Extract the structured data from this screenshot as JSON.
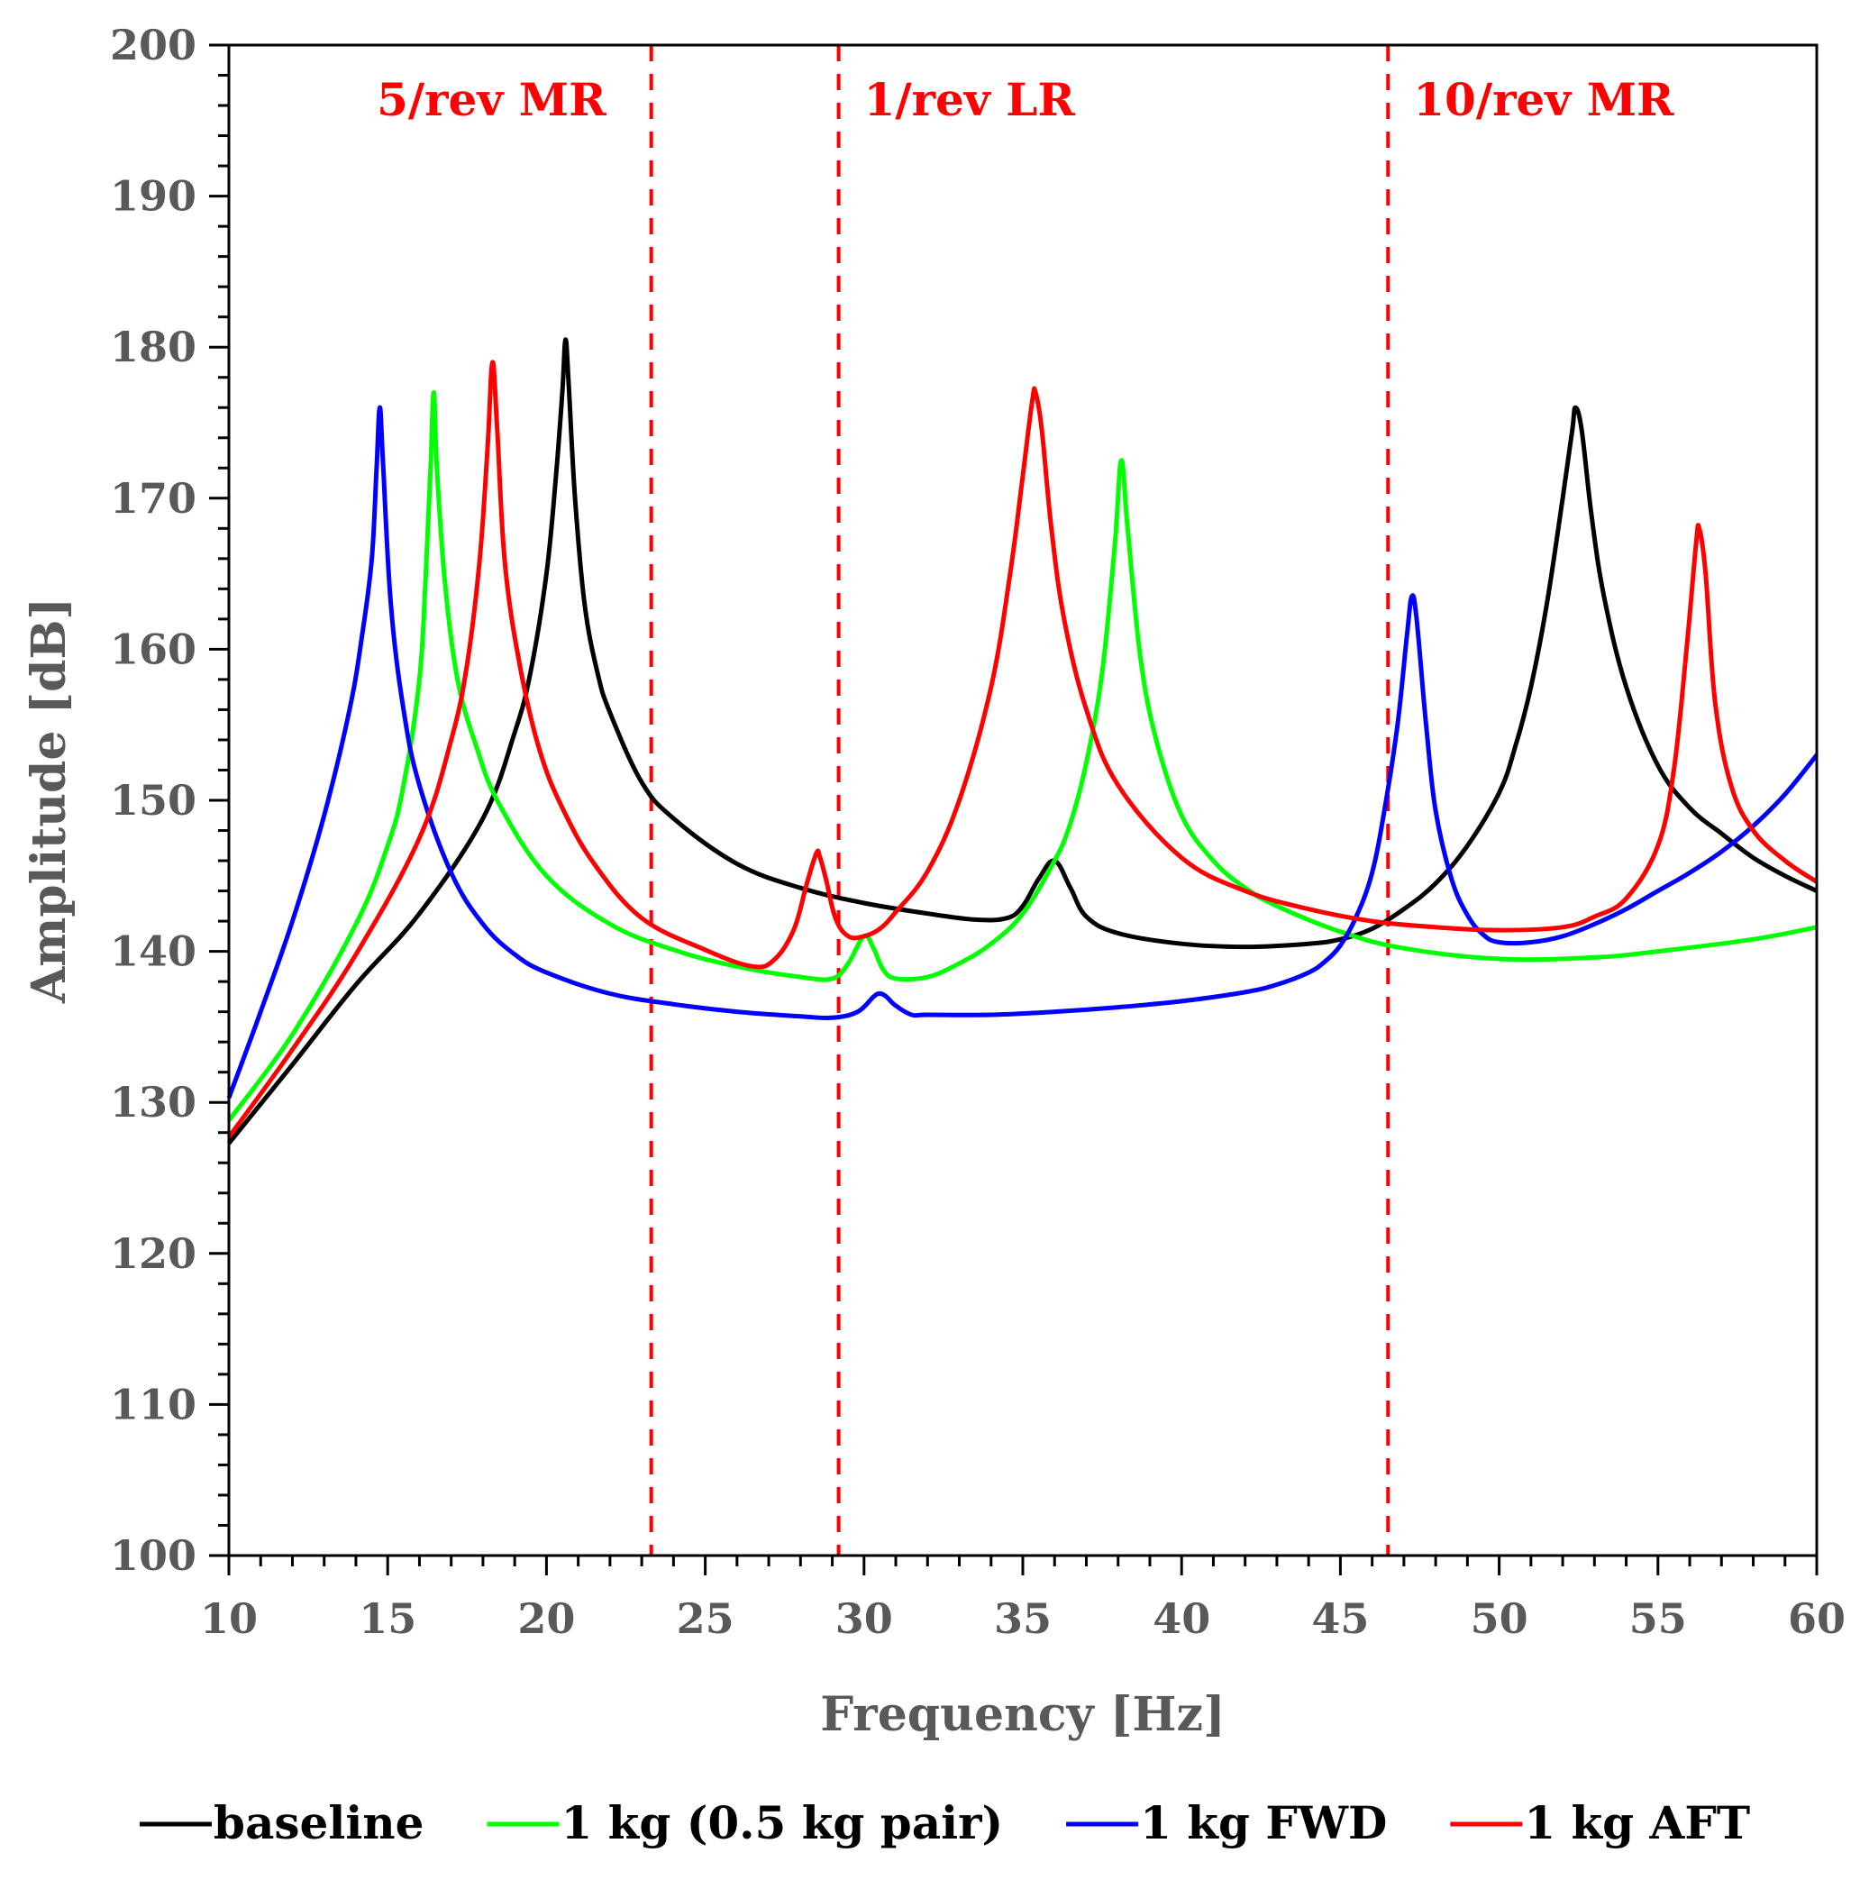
{
  "chart_data": {
    "type": "line",
    "title": "",
    "xlabel": "Frequency [Hz]",
    "ylabel": "Amplitude [dB]",
    "xlim": [
      10,
      60
    ],
    "ylim": [
      100,
      200
    ],
    "xticks": [
      10,
      15,
      20,
      25,
      30,
      35,
      40,
      45,
      50,
      55,
      60
    ],
    "yticks": [
      100,
      110,
      120,
      130,
      140,
      150,
      160,
      170,
      180,
      190,
      200
    ],
    "xtick_labels": [
      "10",
      "15",
      "20",
      "25",
      "30",
      "35",
      "40",
      "45",
      "50",
      "55",
      "60"
    ],
    "ytick_labels": [
      "100",
      "110",
      "120",
      "130",
      "140",
      "150",
      "160",
      "170",
      "180",
      "190",
      "200"
    ],
    "grid": false,
    "legend_position": "bottom",
    "reference_lines": [
      {
        "x": 23.3,
        "label": "5/rev MR",
        "label_side": "left",
        "color": "#ff0000"
      },
      {
        "x": 29.2,
        "label": "1/rev LR",
        "label_side": "right",
        "color": "#ff0000"
      },
      {
        "x": 46.5,
        "label": "10/rev MR",
        "label_side": "right",
        "color": "#ff0000"
      }
    ],
    "series": [
      {
        "name": "baseline",
        "color": "#000000",
        "x": [
          10,
          12,
          14,
          16,
          18,
          19,
          19.5,
          20,
          20.3,
          20.5,
          20.6,
          20.7,
          20.9,
          21.2,
          21.6,
          22,
          23,
          24,
          26,
          28,
          30,
          32,
          33.5,
          34.5,
          35,
          35.5,
          36,
          36.5,
          37,
          38,
          40,
          42,
          44,
          45,
          46,
          47,
          48,
          49,
          50,
          50.5,
          51,
          51.5,
          52,
          52.3,
          52.4,
          52.6,
          52.9,
          53.3,
          54,
          55,
          56,
          57,
          58,
          59,
          60
        ],
        "y": [
          127.3,
          132.5,
          137.8,
          142.5,
          148.8,
          154.5,
          158.5,
          165,
          171.5,
          177,
          180.5,
          177.5,
          170,
          163,
          158.5,
          155.8,
          151.2,
          148.8,
          145.8,
          144.2,
          143.2,
          142.5,
          142.1,
          142.2,
          143,
          144.8,
          146,
          144.2,
          142.3,
          141.2,
          140.5,
          140.3,
          140.5,
          140.8,
          141.5,
          142.8,
          144.5,
          147,
          150.5,
          153.5,
          157.5,
          163,
          170,
          174.5,
          176,
          174.5,
          169,
          163.5,
          157.5,
          152.3,
          149.5,
          147.8,
          146.2,
          145,
          144
        ]
      },
      {
        "name": "1 kg (0.5 kg pair)",
        "color": "#00ff00",
        "x": [
          10,
          12,
          14,
          15,
          15.5,
          16,
          16.2,
          16.35,
          16.45,
          16.55,
          16.8,
          17.2,
          17.8,
          18.5,
          20,
          22,
          24,
          26,
          28,
          29,
          29.5,
          30,
          30.3,
          30.6,
          31,
          32,
          33,
          34,
          35,
          36,
          36.5,
          37,
          37.5,
          37.9,
          38.1,
          38.3,
          38.7,
          39.2,
          40,
          41,
          42,
          43,
          45,
          47,
          50,
          53,
          55,
          58,
          60
        ],
        "y": [
          128.8,
          134.5,
          141.8,
          147,
          151,
          158,
          165,
          172,
          177,
          172,
          164.5,
          158,
          153.5,
          149.8,
          145,
          141.8,
          140.1,
          139,
          138.3,
          138.2,
          139.2,
          141,
          140.2,
          138.8,
          138.2,
          138.3,
          139.2,
          140.5,
          142.5,
          146,
          148.5,
          152.5,
          158.5,
          167,
          172.5,
          168,
          159.5,
          154,
          149,
          146,
          144.2,
          143,
          141.3,
          140.2,
          139.5,
          139.6,
          140,
          140.8,
          141.6
        ]
      },
      {
        "name": "1 kg FWD",
        "color": "#0000ff",
        "x": [
          10,
          11,
          12,
          13,
          13.8,
          14.2,
          14.5,
          14.65,
          14.75,
          14.85,
          15.1,
          15.5,
          16,
          17,
          18,
          19,
          20,
          22,
          24,
          26,
          28,
          29,
          29.8,
          30.3,
          30.5,
          30.7,
          31,
          31.5,
          32,
          34,
          36,
          38,
          40,
          42,
          43,
          44,
          44.5,
          45,
          45.5,
          46,
          46.4,
          46.8,
          47.1,
          47.25,
          47.4,
          47.7,
          48,
          48.5,
          49,
          49.5,
          50,
          51,
          52,
          53,
          54,
          55,
          56,
          57,
          58,
          59,
          60
        ],
        "y": [
          130.3,
          136,
          142,
          149,
          156,
          161,
          166,
          172,
          176,
          172.5,
          163,
          156,
          151,
          145.2,
          141.8,
          139.8,
          138.6,
          137.2,
          136.5,
          136,
          135.7,
          135.6,
          136,
          137,
          137.2,
          137,
          136.4,
          135.8,
          135.8,
          135.8,
          136,
          136.3,
          136.7,
          137.3,
          137.8,
          138.6,
          139.3,
          140.4,
          142.3,
          145.2,
          149.5,
          155,
          161,
          163.5,
          162,
          155,
          149.3,
          144.8,
          142.4,
          141.1,
          140.6,
          140.6,
          141,
          141.8,
          142.8,
          144,
          145.2,
          146.6,
          148.3,
          150.4,
          153
        ]
      },
      {
        "name": "1 kg AFT",
        "color": "#ff0000",
        "x": [
          10,
          12,
          14,
          16,
          17,
          17.5,
          17.9,
          18.15,
          18.3,
          18.45,
          18.7,
          19.2,
          19.8,
          20.5,
          21.5,
          23,
          25,
          26.5,
          27.2,
          27.8,
          28.2,
          28.5,
          28.6,
          28.8,
          29.1,
          29.5,
          30,
          30.5,
          31,
          32,
          33,
          34,
          34.6,
          35,
          35.3,
          35.4,
          35.6,
          35.9,
          36.3,
          37,
          38,
          40,
          42,
          44,
          46,
          48,
          50,
          52,
          53,
          54,
          55,
          55.5,
          55.9,
          56.2,
          56.3,
          56.5,
          56.8,
          57.3,
          58,
          59,
          60
        ],
        "y": [
          127.7,
          133.5,
          139.8,
          147.5,
          154,
          159,
          166,
          173.5,
          179,
          174.5,
          165.5,
          158.5,
          153.2,
          149.5,
          145.8,
          142.2,
          140.1,
          139,
          139.5,
          141.5,
          144.5,
          146.5,
          146.3,
          144.8,
          142.2,
          141,
          141,
          141.5,
          142.6,
          145.3,
          150,
          157.5,
          165,
          171.5,
          176.5,
          177,
          174.5,
          168,
          162,
          156,
          151,
          146.2,
          144,
          142.8,
          142,
          141.6,
          141.4,
          141.6,
          142.3,
          143.5,
          147,
          152,
          160,
          167,
          168,
          165,
          156.5,
          151,
          148,
          146,
          144.6
        ]
      }
    ]
  }
}
